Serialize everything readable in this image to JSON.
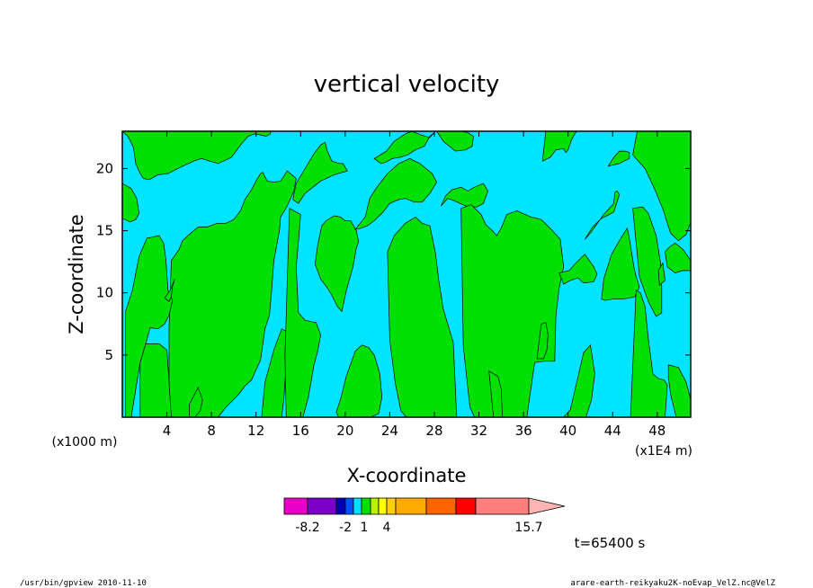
{
  "chart_data": {
    "type": "heatmap",
    "title": "vertical velocity",
    "xlabel": "X-coordinate",
    "ylabel": "Z-coordinate",
    "x_unit_label": "(x1E4 m)",
    "y_unit_label": "(x1000 m)",
    "xlim": [
      0,
      51
    ],
    "ylim": [
      0,
      23
    ],
    "x_ticks": [
      4,
      8,
      12,
      16,
      20,
      24,
      28,
      32,
      36,
      40,
      44,
      48
    ],
    "y_ticks": [
      5,
      10,
      15,
      20
    ],
    "x_tick_labels": [
      "4",
      "8",
      "12",
      "16",
      "20",
      "24",
      "28",
      "32",
      "36",
      "40",
      "44",
      "48"
    ],
    "y_tick_labels": [
      "5",
      "10",
      "15",
      "20"
    ],
    "background_color": "#00e5ff",
    "region_color": "#00e000",
    "regions": [
      {
        "x": [
          0,
          0.5,
          1,
          1.2,
          1.6,
          1.9,
          2.4,
          3.2,
          4.1,
          5.2,
          6.4,
          7.1,
          8.6,
          9.8,
          10.7,
          11.3,
          11.9,
          12.9,
          13.3,
          13.3
        ],
        "y": [
          23,
          22.6,
          21.7,
          20.4,
          19.6,
          19.2,
          19.1,
          19.5,
          19.6,
          20.1,
          20.6,
          20.8,
          20.4,
          20.9,
          22,
          22.6,
          22.8,
          22.6,
          22.8,
          23
        ]
      },
      {
        "x": [
          0,
          0.8,
          1.3,
          1.5,
          1.2,
          0.7,
          0,
          0
        ],
        "y": [
          18.8,
          18.4,
          17.6,
          16.4,
          15.9,
          15.7,
          16,
          18.8
        ]
      },
      {
        "x": [
          4.2,
          6,
          7.7,
          8.6,
          9.3,
          10.4,
          11,
          11.6,
          12.4,
          12.8,
          13.2,
          13.4,
          13.6,
          14.1,
          14.2,
          14.8,
          15.4,
          15.6,
          14.8,
          14.2,
          13.6,
          13,
          12.6,
          12.4,
          12,
          11.6,
          11,
          10.6,
          10,
          9.3,
          8.5,
          7.6,
          6.8,
          6,
          5.4,
          5.1,
          4.4,
          4.2,
          4.2
        ],
        "y": [
          0,
          0,
          0,
          0,
          0.8,
          1.8,
          2.5,
          3,
          4.6,
          7.1,
          8.2,
          10.3,
          12.6,
          15,
          16.1,
          17,
          18.2,
          19.2,
          19.8,
          19,
          18.9,
          19,
          19.7,
          19.6,
          19,
          18.3,
          17.5,
          16.6,
          15.9,
          15.6,
          15.6,
          15.3,
          15.3,
          14.7,
          14.2,
          13.5,
          12.6,
          7.2,
          0
        ]
      },
      {
        "x": [
          1.6,
          2.6,
          3.6,
          4.4,
          4,
          3.3,
          2.1,
          1.6,
          1.6
        ],
        "y": [
          0,
          0,
          0,
          0,
          5.4,
          5.9,
          5.9,
          4.4,
          0
        ]
      },
      {
        "x": [
          0.3,
          0.9,
          1.5,
          2.2,
          3.3,
          3.7,
          3.9,
          4.1,
          4.5,
          4.2,
          3.8,
          3.2,
          2.5,
          2.1,
          1.6,
          0.8,
          0.3,
          0.3
        ],
        "y": [
          8.5,
          10.2,
          12.9,
          14.4,
          14.6,
          14,
          12.8,
          10.2,
          9.4,
          8.2,
          7.5,
          7.1,
          7.2,
          5.9,
          4.4,
          0,
          0,
          8.5
        ]
      },
      {
        "x": [
          3.8,
          4.3,
          4.7,
          4.5,
          4.4,
          4.2,
          3.8
        ],
        "y": [
          9.6,
          10.2,
          11.1,
          10.5,
          9.7,
          9.3,
          9.6
        ]
      },
      {
        "x": [
          6,
          6.8,
          7.2,
          7,
          6.5,
          6,
          6
        ],
        "y": [
          1,
          2.4,
          1.4,
          0.5,
          0,
          0,
          1
        ]
      },
      {
        "x": [
          12.5,
          13.8,
          14.3,
          14.5,
          14.7,
          15.1,
          15,
          14.3,
          13.6,
          12.8,
          12.5
        ],
        "y": [
          0,
          0,
          0,
          1.5,
          4.4,
          6.5,
          6.8,
          7.1,
          5.4,
          2.8,
          0
        ]
      },
      {
        "x": [
          14.7,
          15.3,
          15.9,
          16.2,
          16.7,
          17.2,
          17.5,
          17.8,
          17.4,
          16.4,
          15.8,
          15.6,
          15.8,
          16,
          15,
          14.6,
          14.7
        ],
        "y": [
          0,
          0,
          0,
          0,
          1.6,
          4.2,
          5.2,
          6.6,
          7.6,
          7.8,
          8.4,
          12.1,
          14.1,
          16.3,
          16.8,
          5,
          0
        ]
      },
      {
        "x": [
          15.3,
          15.6,
          16.4,
          17.2,
          17.8,
          18.2,
          18.4,
          18.8,
          19.5,
          19.8,
          20.2,
          19,
          17.8,
          17.1,
          16.4,
          15.8,
          15.3
        ],
        "y": [
          17.5,
          18.8,
          20,
          21.2,
          21.9,
          22.1,
          21.4,
          20.6,
          20.4,
          20.4,
          19.8,
          19.5,
          19,
          18.5,
          18,
          17.2,
          17.5
        ]
      },
      {
        "x": [
          17.3,
          17.8,
          18.4,
          18.8,
          19.3,
          19.7,
          20.1,
          20.7,
          21,
          21.2,
          21,
          20.5,
          20,
          19.6,
          19,
          18.3,
          17.9,
          17.5,
          17.3
        ],
        "y": [
          12.3,
          11.1,
          10.4,
          9.8,
          8.9,
          8.5,
          10.2,
          12.1,
          13.6,
          14.1,
          15,
          15.8,
          15.8,
          16.1,
          16.2,
          15.8,
          15.4,
          13.7,
          12.3
        ]
      },
      {
        "x": [
          19.2,
          19.6,
          20.1,
          20.9,
          21.5,
          22.1,
          22.6,
          23.1,
          23.3,
          23,
          22.3,
          21.6,
          21,
          20.5,
          20,
          19.6,
          19.4,
          19.2
        ],
        "y": [
          0.4,
          1.5,
          3.3,
          5.3,
          5.8,
          5.6,
          5,
          3.5,
          1.6,
          0.3,
          0,
          0,
          0,
          0,
          0,
          0,
          0,
          0.4
        ]
      },
      {
        "x": [
          20.9,
          21.8,
          22.2,
          22.7,
          23.1,
          23.8,
          24.8,
          25.8,
          26.7,
          27.8,
          28.2,
          27.6,
          26.9,
          26.2,
          25.4,
          24.8,
          24,
          23.4,
          22.6,
          22,
          21.4,
          20.9
        ],
        "y": [
          15.1,
          16.1,
          17.6,
          18.3,
          18.8,
          19.6,
          20.4,
          20.8,
          20.4,
          19.6,
          18.9,
          18,
          17.3,
          17.3,
          17.6,
          17.5,
          17.2,
          16.5,
          15.8,
          15.4,
          15.2,
          15.1
        ]
      },
      {
        "x": [
          23.8,
          24.4,
          25.4,
          26.3,
          26.9,
          27.6,
          28.1,
          28.4,
          28.8,
          29.7,
          30,
          29.5,
          28.8,
          28.5,
          28,
          27.4,
          27.1,
          26.7,
          26.1,
          25.5,
          25,
          24.5,
          24,
          23.8
        ],
        "y": [
          13.3,
          14.6,
          15.6,
          16.1,
          15.6,
          15.4,
          13.2,
          11,
          8.7,
          6,
          0,
          0,
          0,
          0,
          0,
          0,
          0,
          0,
          0,
          0,
          0.5,
          2.7,
          6.2,
          13.3
        ]
      },
      {
        "x": [
          22.6,
          23.7,
          24.4,
          25.4,
          26,
          26.8,
          27.6,
          28,
          27.6,
          27.1,
          26.3,
          25.6,
          24.9,
          24.2,
          23.6,
          23.2,
          22.6
        ],
        "y": [
          20.8,
          21.4,
          22.2,
          22.8,
          23,
          22.7,
          22.5,
          22.9,
          22.6,
          21.8,
          21.5,
          21.1,
          20.9,
          20.8,
          20.5,
          20.4,
          20.8
        ]
      },
      {
        "x": [
          28.2,
          28.8,
          29.9,
          30.8,
          31.4,
          31.5,
          31,
          30.4,
          29.9,
          29.5,
          29.1,
          28.2
        ],
        "y": [
          23,
          22.2,
          21.4,
          21.5,
          21.8,
          22.6,
          22.9,
          23,
          23,
          23,
          23,
          23
        ]
      },
      {
        "x": [
          28.6,
          29.2,
          29.8,
          30.8,
          31.8,
          32.4,
          32.8,
          32.4,
          31.6,
          31,
          30.4,
          29.6,
          29,
          28.6
        ],
        "y": [
          17,
          17.6,
          17.4,
          17,
          16.9,
          17.2,
          18.2,
          18.8,
          18.5,
          18.2,
          18.5,
          18.3,
          17.8,
          17
        ]
      },
      {
        "x": [
          30.4,
          31.3,
          32.2,
          32.6,
          33.2,
          33.6,
          34,
          34.5,
          35.4,
          36.7,
          37.6,
          38.5,
          39.3,
          39.6,
          39.2,
          38.9,
          38.8,
          37.8,
          37,
          36.3,
          35.7,
          35.3,
          35.1,
          34.6,
          34.1,
          33.5,
          33,
          32.6,
          32.2,
          31.6,
          31.2,
          31,
          30.6,
          30.4
        ],
        "y": [
          16.8,
          17.1,
          16.3,
          15.5,
          15,
          14.6,
          15.2,
          16.3,
          16.6,
          16.1,
          15.9,
          15.1,
          14.3,
          12.1,
          10.4,
          8.2,
          4.5,
          4.5,
          4.4,
          0,
          0,
          0,
          0,
          0,
          0,
          0,
          0,
          0,
          0,
          0,
          0.8,
          2.3,
          5.7,
          16.8
        ]
      },
      {
        "x": [
          32.9,
          33.3,
          33.7,
          34,
          34.1,
          33.8,
          33.3,
          32.9
        ],
        "y": [
          3.7,
          3.5,
          3.3,
          2.3,
          0,
          0,
          0,
          3.7
        ]
      },
      {
        "x": [
          37.2,
          37.8,
          38.1,
          38.2,
          38,
          37.6,
          37.2
        ],
        "y": [
          4.7,
          4.7,
          5.4,
          6.6,
          7.6,
          7.5,
          4.7
        ]
      },
      {
        "x": [
          37.7,
          38.4,
          38.9,
          39.6,
          39.8,
          40,
          40.3,
          40.6,
          40.8,
          40,
          39.6,
          39.2,
          38.6,
          38,
          37.7
        ],
        "y": [
          20.6,
          20.9,
          21.5,
          21.6,
          21.3,
          21.5,
          22.3,
          22.8,
          23,
          23,
          23,
          23,
          23,
          23,
          20.6
        ]
      },
      {
        "x": [
          38.8,
          39.6,
          40.2,
          40.8,
          41.4,
          42,
          42.4,
          42.1,
          41.6,
          41.3,
          40.7,
          40.1,
          39.5,
          39.2,
          38.8
        ],
        "y": [
          0,
          0,
          0.6,
          2.9,
          5.2,
          5.8,
          3.5,
          1.4,
          0,
          0,
          0,
          0,
          0,
          0,
          0
        ]
      },
      {
        "x": [
          39.2,
          40.1,
          40.8,
          41.5,
          42.3,
          42.6,
          42.3,
          41.4,
          40.9,
          40.2,
          39.6,
          39.2
        ],
        "y": [
          11.6,
          11.8,
          12.5,
          13.1,
          12.1,
          11.5,
          10.9,
          10.8,
          11.2,
          11,
          10.7,
          11.6
        ]
      },
      {
        "x": [
          41.5,
          42.2,
          43,
          43.7,
          44.1,
          44.6,
          44.4,
          44.2,
          44.1,
          43.2,
          42.4,
          41.9,
          41.5
        ],
        "y": [
          14.3,
          15.3,
          16,
          16.3,
          16.5,
          17.9,
          18.2,
          18.1,
          17.2,
          16.3,
          15.3,
          14.7,
          14.3
        ]
      },
      {
        "x": [
          43.6,
          44.1,
          44.6,
          45.1,
          45.5,
          45.5,
          45,
          44.6,
          43.6
        ],
        "y": [
          20.2,
          20.9,
          21.4,
          21.4,
          21.3,
          20.8,
          20.6,
          20.4,
          20.2
        ]
      },
      {
        "x": [
          45.8,
          46.9,
          47.8,
          48.3,
          48.6,
          48.8,
          49.2,
          49.9,
          50.6,
          51,
          51,
          50.4,
          49.8,
          49.3,
          48.9,
          48.3,
          47.7,
          47.6,
          47.1,
          46.6,
          46.4,
          46.2,
          45.8
        ],
        "y": [
          21.1,
          20,
          18.3,
          17.2,
          16.5,
          15.9,
          14.8,
          14.2,
          14.7,
          15.7,
          23,
          23,
          23,
          23,
          23,
          23,
          23,
          23,
          23,
          23,
          23,
          23,
          21.1
        ]
      },
      {
        "x": [
          43,
          43.2,
          43.9,
          44.8,
          45.3,
          45.5,
          45.9,
          46.1,
          46.4,
          46,
          45.6,
          44.8,
          44,
          43.3,
          43
        ],
        "y": [
          9.5,
          11.1,
          13.1,
          14.5,
          15.2,
          14.4,
          12.1,
          11.3,
          10.5,
          9.7,
          9.6,
          9.5,
          9.5,
          9.4,
          9.5
        ]
      },
      {
        "x": [
          45.6,
          46.3,
          46.9,
          47.3,
          47.9,
          48.2,
          48.7,
          48.9,
          48.6,
          48.1,
          47.6,
          47.2,
          46.9,
          46.5,
          46.1,
          45.6
        ],
        "y": [
          0,
          0,
          0,
          0,
          0,
          0,
          0,
          2.6,
          3,
          3.1,
          3.5,
          6.3,
          8.9,
          10,
          10.2,
          0
        ]
      },
      {
        "x": [
          49,
          49.9,
          50.6,
          51,
          51,
          50.6,
          49.7,
          49.2,
          49,
          49
        ],
        "y": [
          4.2,
          4,
          2.8,
          1.4,
          0,
          0,
          0,
          1.8,
          3.2,
          4.2
        ]
      },
      {
        "x": [
          45.8,
          46.7,
          47.2,
          47.9,
          48.3,
          48.4,
          48.4,
          47.9,
          47.2,
          46.4,
          45.8
        ],
        "y": [
          16.8,
          16.9,
          16.4,
          14.6,
          12.4,
          10.5,
          8.4,
          8.1,
          9.3,
          11.3,
          16.8
        ]
      },
      {
        "x": [
          48.7,
          49.1,
          49.6,
          50.3,
          51,
          51,
          50.3,
          49.6,
          48.9,
          48.7
        ],
        "y": [
          13.3,
          13.7,
          14,
          13.5,
          12.6,
          11.8,
          11.8,
          11.6,
          12.1,
          13.3
        ]
      },
      {
        "x": [
          48.1,
          48.5,
          48.7,
          48.2,
          48.1
        ],
        "y": [
          11.8,
          12.4,
          11,
          10.6,
          11.8
        ]
      }
    ],
    "colorbar": {
      "colors": [
        "#e800c8",
        "#7a00c8",
        "#0000b4",
        "#0050ff",
        "#00e0ff",
        "#00e000",
        "#b8f000",
        "#ffff00",
        "#ffd000",
        "#ffaa00",
        "#ff6400",
        "#ff0000",
        "#ff7f7f",
        "#ffb4b4"
      ],
      "tick_labels": [
        "-8.2",
        "-2",
        "1",
        "4",
        "15.7"
      ]
    },
    "time_label": "t=65400 s"
  },
  "footer": {
    "left": "/usr/bin/gpview  2010-11-10",
    "right": "arare-earth-reikyaku2K-noEvap_VelZ.nc@VelZ"
  }
}
